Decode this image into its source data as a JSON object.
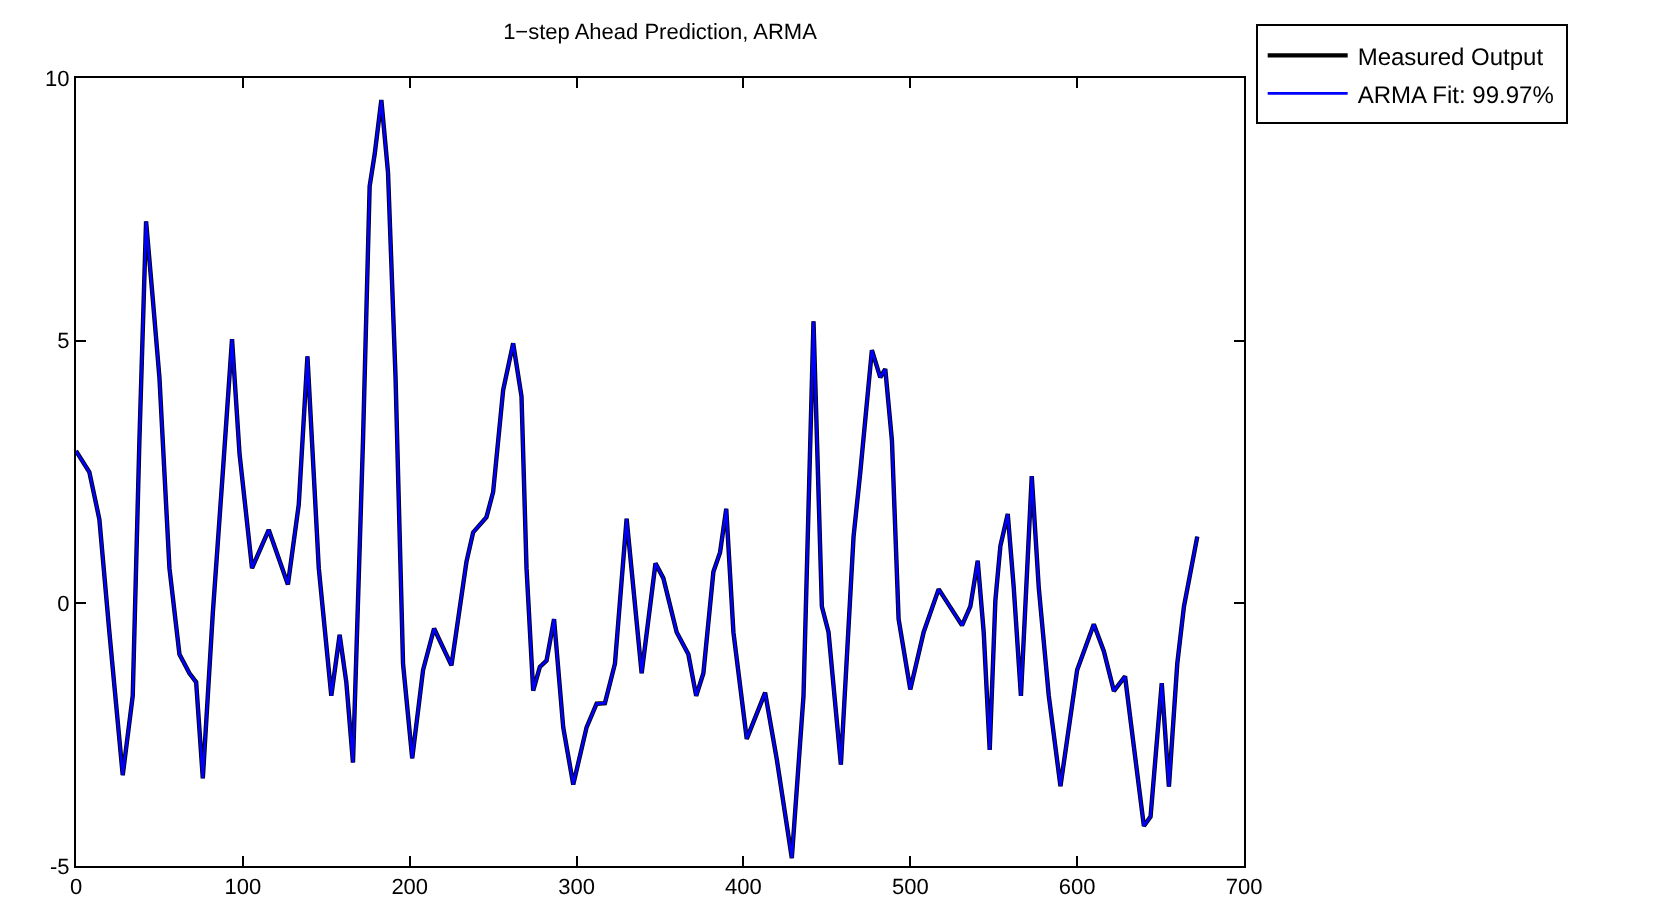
{
  "chart_data": {
    "type": "line",
    "title": "1−step Ahead Prediction, ARMA",
    "x": [
      0,
      8,
      14,
      20,
      28,
      34,
      38,
      42,
      46,
      50,
      56,
      62,
      68,
      72,
      76,
      82,
      88,
      93.5,
      98,
      105.5,
      115.5,
      127,
      133.5,
      138.7,
      145.5,
      153,
      158,
      162,
      166,
      172,
      176,
      179,
      183,
      187,
      191.5,
      196,
      201.5,
      208,
      214.6,
      225,
      234,
      238,
      246,
      250,
      256,
      262,
      267,
      270,
      274,
      278,
      282,
      286.5,
      292,
      298,
      306,
      312,
      317,
      323,
      330,
      339,
      347.3,
      352,
      360,
      367,
      371.7,
      376,
      382,
      386,
      389.7,
      394,
      402,
      413,
      420,
      429,
      436,
      442,
      447,
      451,
      458.4,
      466,
      470,
      477,
      482,
      485,
      489,
      493,
      500,
      508,
      517,
      531,
      536,
      540.4,
      544,
      547.6,
      551,
      554,
      558.4,
      562,
      566.3,
      572.8,
      577,
      583,
      590,
      600,
      610,
      616,
      622,
      628.7,
      634,
      640,
      644,
      650.7,
      655,
      660,
      664,
      672
    ],
    "series": [
      {
        "name": "Measured Output",
        "color": "#000000",
        "values": [
          2.9,
          2.5,
          1.6,
          -0.55,
          -3.27,
          -1.76,
          3.1,
          7.27,
          5.8,
          4.3,
          0.67,
          -0.97,
          -1.33,
          -1.5,
          -3.33,
          -0.18,
          2.5,
          5.03,
          2.85,
          0.67,
          1.4,
          0.36,
          1.88,
          4.7,
          0.67,
          -1.76,
          -0.6,
          -1.5,
          -3.03,
          3.1,
          7.94,
          8.55,
          9.58,
          8.2,
          4.3,
          -1.15,
          -2.95,
          -1.27,
          -0.48,
          -1.18,
          0.79,
          1.35,
          1.64,
          2.12,
          4.06,
          4.95,
          3.94,
          0.67,
          -1.66,
          -1.21,
          -1.09,
          -0.3,
          -2.36,
          -3.45,
          -2.36,
          -1.91,
          -1.9,
          -1.15,
          1.61,
          -1.33,
          0.76,
          0.48,
          -0.55,
          -0.97,
          -1.76,
          -1.33,
          0.6,
          0.97,
          1.8,
          -0.55,
          -2.58,
          -1.7,
          -2.97,
          -4.85,
          -1.76,
          5.37,
          -0.06,
          -0.55,
          -3.07,
          1.27,
          2.48,
          4.82,
          4.3,
          4.46,
          3.1,
          -0.3,
          -1.64,
          -0.55,
          0.27,
          -0.42,
          -0.06,
          0.81,
          -0.55,
          -2.79,
          0.06,
          1.09,
          1.7,
          0.3,
          -1.76,
          2.42,
          0.3,
          -1.76,
          -3.48,
          -1.27,
          -0.4,
          -0.91,
          -1.67,
          -1.39,
          -2.73,
          -4.24,
          -4.06,
          -1.52,
          -3.49,
          -1.15,
          -0.06,
          1.27
        ]
      },
      {
        "name": "ARMA Fit: 99.97%",
        "color": "#0000ff",
        "values": [
          2.9,
          2.5,
          1.6,
          -0.55,
          -3.27,
          -1.76,
          3.1,
          7.27,
          5.8,
          4.3,
          0.67,
          -0.97,
          -1.33,
          -1.5,
          -3.33,
          -0.18,
          2.5,
          5.03,
          2.85,
          0.67,
          1.4,
          0.36,
          1.88,
          4.7,
          0.67,
          -1.76,
          -0.6,
          -1.5,
          -3.03,
          3.1,
          7.94,
          8.55,
          9.58,
          8.2,
          4.3,
          -1.15,
          -2.95,
          -1.27,
          -0.48,
          -1.18,
          0.79,
          1.35,
          1.64,
          2.12,
          4.06,
          4.95,
          3.94,
          0.67,
          -1.66,
          -1.21,
          -1.09,
          -0.3,
          -2.36,
          -3.45,
          -2.36,
          -1.91,
          -1.9,
          -1.15,
          1.61,
          -1.33,
          0.76,
          0.48,
          -0.55,
          -0.97,
          -1.76,
          -1.33,
          0.6,
          0.97,
          1.8,
          -0.55,
          -2.58,
          -1.7,
          -2.97,
          -4.85,
          -1.76,
          5.37,
          -0.06,
          -0.55,
          -3.07,
          1.27,
          2.48,
          4.82,
          4.3,
          4.46,
          3.1,
          -0.3,
          -1.64,
          -0.55,
          0.27,
          -0.42,
          -0.06,
          0.81,
          -0.55,
          -2.79,
          0.06,
          1.09,
          1.7,
          0.3,
          -1.76,
          2.42,
          0.3,
          -1.76,
          -3.48,
          -1.27,
          -0.4,
          -0.91,
          -1.67,
          -1.39,
          -2.73,
          -4.24,
          -4.06,
          -1.52,
          -3.49,
          -1.15,
          -0.06,
          1.27
        ]
      }
    ],
    "xlim": [
      0,
      700
    ],
    "xticks": [
      0,
      100,
      200,
      300,
      400,
      500,
      600,
      700
    ],
    "ylim": [
      -5,
      10
    ],
    "yticks": [
      -5,
      0,
      5,
      10
    ],
    "legend": "top right",
    "marker": "none",
    "line_style": "solid"
  }
}
